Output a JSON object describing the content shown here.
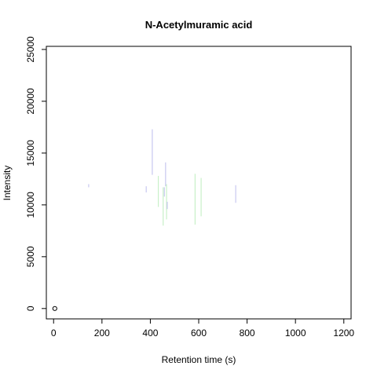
{
  "chart_data": {
    "type": "scatter",
    "title": "N-Acetylmuramic acid",
    "xlabel": "Retention time (s)",
    "ylabel": "Intensity",
    "xlim": [
      -30,
      1230
    ],
    "ylim": [
      -1000,
      25300
    ],
    "x_ticks": [
      0,
      200,
      400,
      600,
      800,
      1000,
      1200
    ],
    "y_ticks": [
      0,
      5000,
      10000,
      15000,
      20000,
      25000
    ],
    "grid": false,
    "legend": "none",
    "colors": {
      "blue": "#c8c8f0",
      "green": "#c8f0c8",
      "black": "#000000"
    },
    "segments": [
      {
        "x": 145,
        "y0": 11700,
        "y1": 12000,
        "color": "blue"
      },
      {
        "x": 383,
        "y0": 11200,
        "y1": 11800,
        "color": "blue"
      },
      {
        "x": 408,
        "y0": 12900,
        "y1": 17300,
        "color": "blue"
      },
      {
        "x": 433,
        "y0": 9800,
        "y1": 12800,
        "color": "green"
      },
      {
        "x": 453,
        "y0": 8000,
        "y1": 11700,
        "color": "green"
      },
      {
        "x": 458,
        "y0": 10800,
        "y1": 11700,
        "color": "blue"
      },
      {
        "x": 463,
        "y0": 11800,
        "y1": 14100,
        "color": "blue"
      },
      {
        "x": 467,
        "y0": 8600,
        "y1": 12000,
        "color": "green"
      },
      {
        "x": 470,
        "y0": 9600,
        "y1": 10300,
        "color": "blue"
      },
      {
        "x": 585,
        "y0": 8100,
        "y1": 13000,
        "color": "green"
      },
      {
        "x": 610,
        "y0": 8900,
        "y1": 12600,
        "color": "green"
      },
      {
        "x": 753,
        "y0": 10200,
        "y1": 11900,
        "color": "blue"
      }
    ],
    "points": [
      {
        "x": 5,
        "y": 0,
        "shape": "open-circle",
        "color": "black"
      }
    ]
  }
}
